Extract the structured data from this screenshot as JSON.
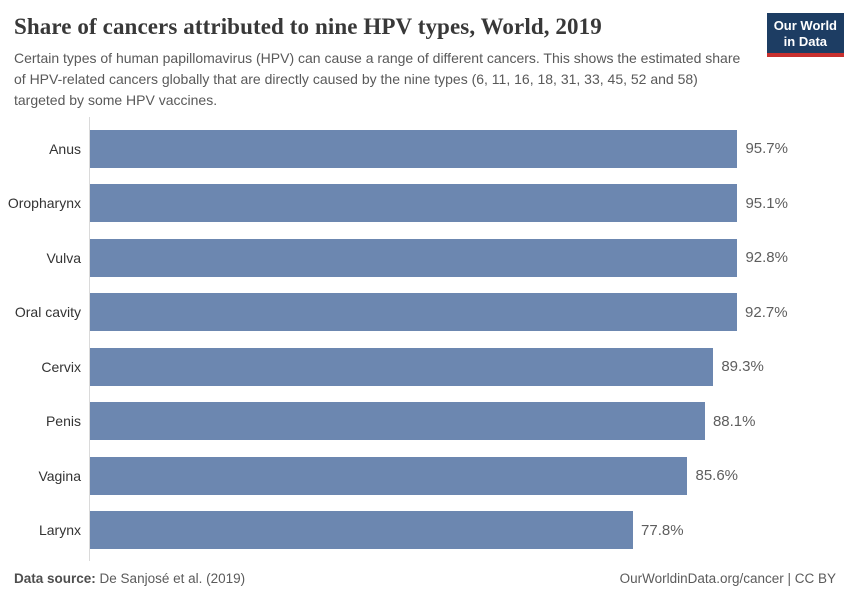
{
  "header": {
    "title": "Share of cancers attributed to nine HPV types, World, 2019",
    "subtitle": "Certain types of human papillomavirus (HPV) can cause a range of different cancers. This shows the estimated share of HPV-related cancers globally that are directly caused by the nine types (6, 11, 16, 18, 31, 33, 45, 52 and 58) targeted by some HPV vaccines.",
    "logo": {
      "line1": "Our World",
      "line2": "in Data"
    }
  },
  "chart_data": {
    "type": "bar",
    "orientation": "horizontal",
    "title": "Share of cancers attributed to nine HPV types, World, 2019",
    "categories": [
      "Anus",
      "Oropharynx",
      "Vulva",
      "Oral cavity",
      "Cervix",
      "Penis",
      "Vagina",
      "Larynx"
    ],
    "values": [
      95.7,
      95.1,
      92.8,
      92.7,
      89.3,
      88.1,
      85.6,
      77.8
    ],
    "value_labels": [
      "95.7%",
      "95.1%",
      "92.8%",
      "92.7%",
      "89.3%",
      "88.1%",
      "85.6%",
      "77.8%"
    ],
    "xlabel": "",
    "ylabel": "",
    "xlim": [
      0,
      100
    ],
    "unit": "%",
    "grid": false,
    "legend": false,
    "bar_color": "#6c87b0"
  },
  "footer": {
    "datasource_label": "Data source:",
    "datasource_value": "De Sanjosé et al. (2019)",
    "credit": "OurWorldinData.org/cancer | CC BY"
  },
  "colors": {
    "bar": "#6c87b0",
    "logo_navy": "#1d3d63",
    "logo_red": "#c8302e",
    "axis": "#dadada"
  }
}
